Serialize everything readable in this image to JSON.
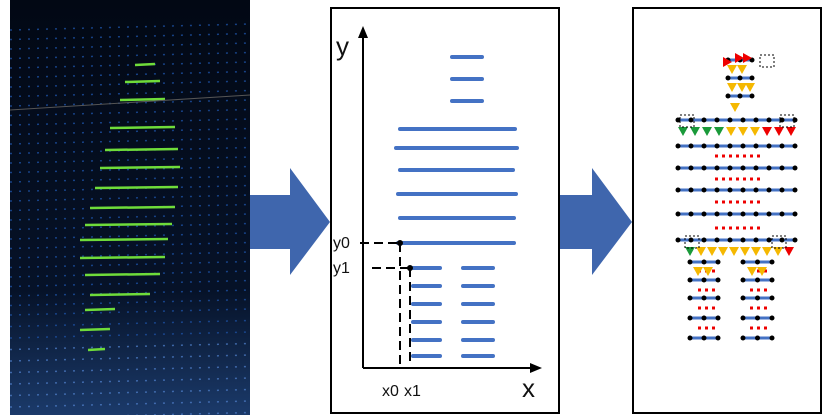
{
  "diagram": {
    "middle": {
      "y_axis_label": "y",
      "x_axis_label": "x",
      "y0_label": "y0",
      "y1_label": "y1",
      "x0_label": "x0",
      "x1_label": "x1"
    }
  }
}
